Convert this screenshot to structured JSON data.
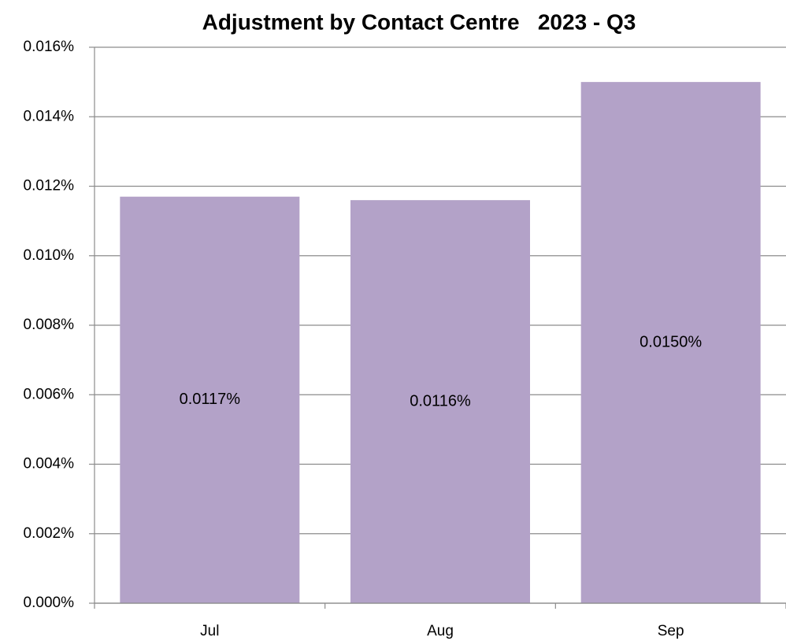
{
  "chart_data": {
    "type": "bar",
    "title": "Adjustment by Contact Centre   2023 - Q3",
    "categories": [
      "Jul",
      "Aug",
      "Sep"
    ],
    "values": [
      0.0117,
      0.0116,
      0.015
    ],
    "value_labels": [
      "0.0117%",
      "0.0116%",
      "0.0150%"
    ],
    "color": "#b3a2c8",
    "ylim": [
      0,
      0.016
    ],
    "yticks": [
      {
        "value": 0,
        "label": "0.000%"
      },
      {
        "value": 0.002,
        "label": "0.002%"
      },
      {
        "value": 0.004,
        "label": "0.004%"
      },
      {
        "value": 0.006,
        "label": "0.006%"
      },
      {
        "value": 0.008,
        "label": "0.008%"
      },
      {
        "value": 0.01,
        "label": "0.010%"
      },
      {
        "value": 0.012,
        "label": "0.012%"
      },
      {
        "value": 0.014,
        "label": "0.014%"
      },
      {
        "value": 0.016,
        "label": "0.016%"
      }
    ],
    "grid": true
  }
}
